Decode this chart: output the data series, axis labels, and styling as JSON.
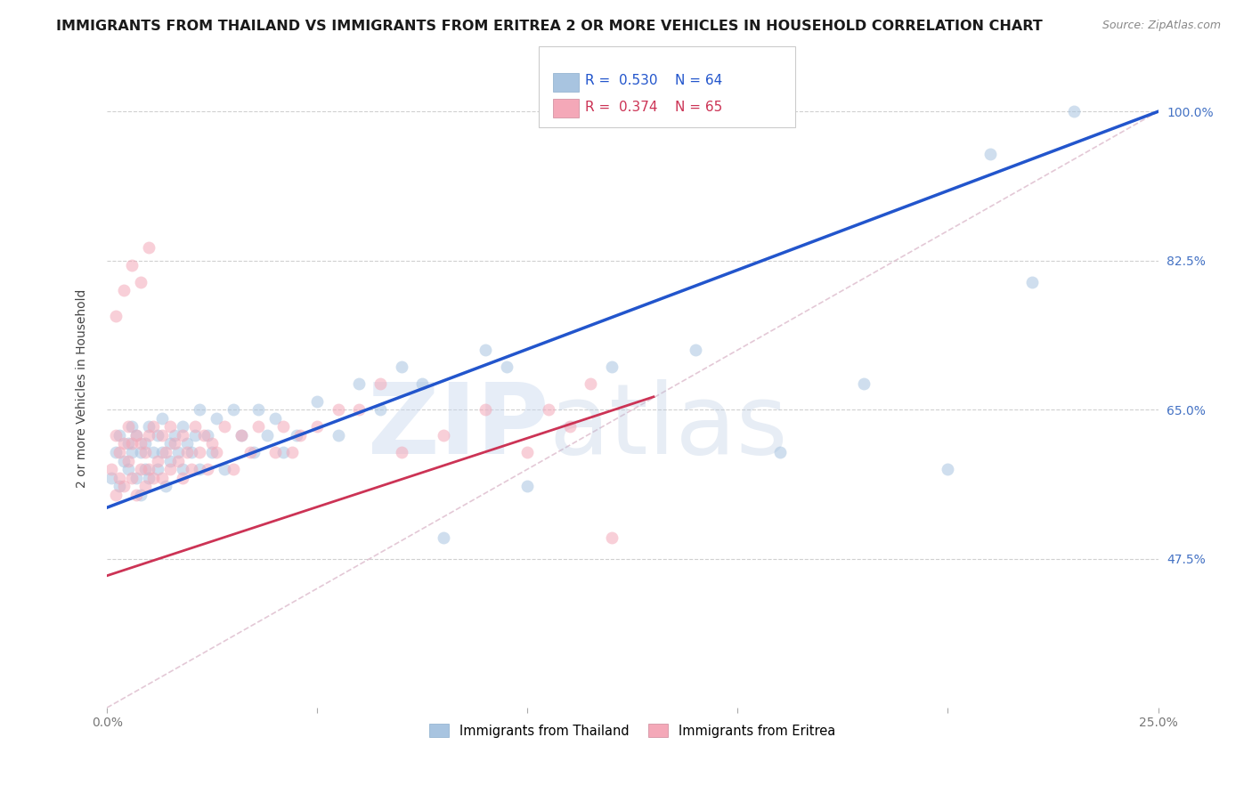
{
  "title": "IMMIGRANTS FROM THAILAND VS IMMIGRANTS FROM ERITREA 2 OR MORE VEHICLES IN HOUSEHOLD CORRELATION CHART",
  "source": "Source: ZipAtlas.com",
  "ylabel": "2 or more Vehicles in Household",
  "legend_label1": "Immigrants from Thailand",
  "legend_label2": "Immigrants from Eritrea",
  "R1": 0.53,
  "N1": 64,
  "R2": 0.374,
  "N2": 65,
  "color1": "#a8c4e0",
  "color2": "#f4a8b8",
  "line_color1": "#2255cc",
  "line_color2": "#cc3355",
  "xmin": 0.0,
  "xmax": 0.25,
  "ymin": 0.3,
  "ymax": 1.05,
  "yticks": [
    0.475,
    0.65,
    0.825,
    1.0
  ],
  "ytick_labels": [
    "47.5%",
    "65.0%",
    "82.5%",
    "100.0%"
  ],
  "xticks": [
    0.0,
    0.05,
    0.1,
    0.15,
    0.2,
    0.25
  ],
  "xtick_labels": [
    "0.0%",
    "",
    "",
    "",
    "",
    "25.0%"
  ],
  "watermark_zip": "ZIP",
  "watermark_atlas": "atlas",
  "title_fontsize": 11.5,
  "axis_label_fontsize": 10,
  "tick_fontsize": 10,
  "scatter_size": 100,
  "scatter_alpha": 0.55,
  "thailand_x": [
    0.001,
    0.002,
    0.003,
    0.003,
    0.004,
    0.005,
    0.005,
    0.006,
    0.006,
    0.007,
    0.007,
    0.008,
    0.008,
    0.009,
    0.009,
    0.01,
    0.01,
    0.011,
    0.012,
    0.012,
    0.013,
    0.013,
    0.014,
    0.015,
    0.015,
    0.016,
    0.017,
    0.018,
    0.018,
    0.019,
    0.02,
    0.021,
    0.022,
    0.022,
    0.024,
    0.025,
    0.026,
    0.028,
    0.03,
    0.032,
    0.035,
    0.036,
    0.038,
    0.04,
    0.042,
    0.045,
    0.05,
    0.055,
    0.06,
    0.065,
    0.07,
    0.075,
    0.08,
    0.09,
    0.095,
    0.1,
    0.12,
    0.14,
    0.16,
    0.18,
    0.2,
    0.21,
    0.22,
    0.23
  ],
  "thailand_y": [
    0.57,
    0.6,
    0.56,
    0.62,
    0.59,
    0.58,
    0.61,
    0.6,
    0.63,
    0.57,
    0.62,
    0.55,
    0.6,
    0.58,
    0.61,
    0.57,
    0.63,
    0.6,
    0.58,
    0.62,
    0.6,
    0.64,
    0.56,
    0.61,
    0.59,
    0.62,
    0.6,
    0.58,
    0.63,
    0.61,
    0.6,
    0.62,
    0.58,
    0.65,
    0.62,
    0.6,
    0.64,
    0.58,
    0.65,
    0.62,
    0.6,
    0.65,
    0.62,
    0.64,
    0.6,
    0.62,
    0.66,
    0.62,
    0.68,
    0.65,
    0.7,
    0.68,
    0.5,
    0.72,
    0.7,
    0.56,
    0.7,
    0.72,
    0.6,
    0.68,
    0.58,
    0.95,
    0.8,
    1.0
  ],
  "eritrea_x": [
    0.001,
    0.002,
    0.002,
    0.003,
    0.003,
    0.004,
    0.004,
    0.005,
    0.005,
    0.006,
    0.006,
    0.007,
    0.007,
    0.008,
    0.008,
    0.009,
    0.009,
    0.01,
    0.01,
    0.011,
    0.011,
    0.012,
    0.013,
    0.013,
    0.014,
    0.015,
    0.015,
    0.016,
    0.017,
    0.018,
    0.018,
    0.019,
    0.02,
    0.021,
    0.022,
    0.023,
    0.024,
    0.025,
    0.026,
    0.028,
    0.03,
    0.032,
    0.034,
    0.036,
    0.04,
    0.042,
    0.044,
    0.046,
    0.05,
    0.055,
    0.06,
    0.065,
    0.07,
    0.08,
    0.09,
    0.1,
    0.105,
    0.11,
    0.115,
    0.12,
    0.002,
    0.004,
    0.006,
    0.008,
    0.01
  ],
  "eritrea_y": [
    0.58,
    0.55,
    0.62,
    0.57,
    0.6,
    0.56,
    0.61,
    0.59,
    0.63,
    0.57,
    0.61,
    0.55,
    0.62,
    0.58,
    0.61,
    0.56,
    0.6,
    0.58,
    0.62,
    0.57,
    0.63,
    0.59,
    0.57,
    0.62,
    0.6,
    0.58,
    0.63,
    0.61,
    0.59,
    0.57,
    0.62,
    0.6,
    0.58,
    0.63,
    0.6,
    0.62,
    0.58,
    0.61,
    0.6,
    0.63,
    0.58,
    0.62,
    0.6,
    0.63,
    0.6,
    0.63,
    0.6,
    0.62,
    0.63,
    0.65,
    0.65,
    0.68,
    0.6,
    0.62,
    0.65,
    0.6,
    0.65,
    0.63,
    0.68,
    0.5,
    0.76,
    0.79,
    0.82,
    0.8,
    0.84
  ],
  "trend1_x": [
    0.0,
    0.25
  ],
  "trend1_y": [
    0.535,
    1.0
  ],
  "trend2_x": [
    0.0,
    0.13
  ],
  "trend2_y": [
    0.455,
    0.665
  ],
  "ref_line_x": [
    0.0,
    0.25
  ],
  "ref_line_y": [
    0.3,
    1.0
  ],
  "background_color": "#ffffff",
  "grid_color": "#d0d0d0",
  "right_tick_color": "#4472c4"
}
